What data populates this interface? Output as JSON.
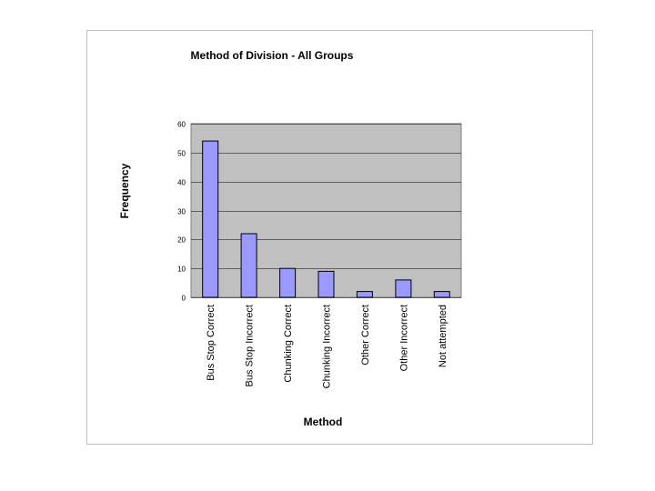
{
  "colors": {
    "plot_background": "#c0c0c0",
    "bar_fill": "#9999ff",
    "bar_stroke": "#000000",
    "gridline": "#000000",
    "frame_border": "#bdbdbd"
  },
  "chart_data": {
    "type": "bar",
    "title": "Method of Division - All Groups",
    "xlabel": "Method",
    "ylabel": "Frequency",
    "ylim": [
      0,
      60
    ],
    "yticks": [
      0,
      10,
      20,
      30,
      40,
      50,
      60
    ],
    "grid": true,
    "legend": "none",
    "categories": [
      "Bus Stop Correct",
      "Bus Stop Incorrect",
      "Chunking Correct",
      "Chunking Incorrect",
      "Other Correct",
      "Other Incorrect",
      "Not attempted"
    ],
    "values": [
      54,
      22,
      10,
      9,
      2,
      6,
      2
    ]
  }
}
